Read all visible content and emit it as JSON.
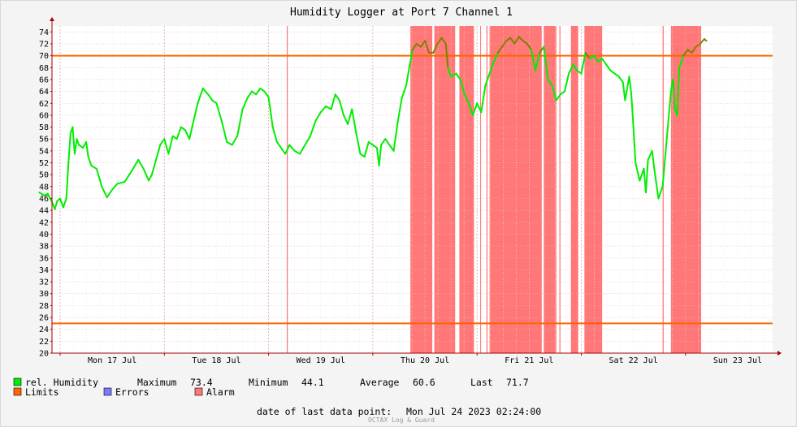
{
  "chart_data": {
    "type": "line",
    "title": "Humidity Logger at Port 7 Channel 1",
    "y_axis": {
      "range": [
        20,
        75
      ],
      "ticks": [
        20,
        22,
        24,
        26,
        28,
        30,
        32,
        34,
        36,
        38,
        40,
        42,
        44,
        46,
        48,
        50,
        52,
        54,
        56,
        58,
        60,
        62,
        64,
        66,
        68,
        70,
        72,
        74
      ]
    },
    "x_axis": {
      "range_days": "Mon Jul 17 2023 00:00 to Mon Jul 24 2023 02:24",
      "tick_labels": [
        "Mon 17 Jul",
        "Tue 18 Jul",
        "Wed 19 Jul",
        "Thu 20 Jul",
        "Fri 21 Jul",
        "Sat 22 Jul",
        "Sun 23 Jul"
      ]
    },
    "grid": true,
    "series": [
      {
        "name": "rel. Humidity",
        "color": "#00ee00",
        "color_above_limit": "#808000",
        "points_day_value": [
          [
            -0.2,
            47.0
          ],
          [
            -0.15,
            46.5
          ],
          [
            -0.12,
            46.8
          ],
          [
            -0.08,
            45.5
          ],
          [
            -0.05,
            44.2
          ],
          [
            -0.03,
            45.5
          ],
          [
            0.0,
            46.0
          ],
          [
            0.03,
            44.5
          ],
          [
            0.06,
            46.0
          ],
          [
            0.08,
            52.0
          ],
          [
            0.1,
            57.0
          ],
          [
            0.12,
            58.0
          ],
          [
            0.14,
            53.5
          ],
          [
            0.16,
            56.0
          ],
          [
            0.18,
            55.0
          ],
          [
            0.22,
            54.5
          ],
          [
            0.25,
            55.5
          ],
          [
            0.27,
            53.0
          ],
          [
            0.3,
            51.5
          ],
          [
            0.35,
            51.0
          ],
          [
            0.4,
            48.0
          ],
          [
            0.45,
            46.2
          ],
          [
            0.5,
            47.5
          ],
          [
            0.55,
            48.5
          ],
          [
            0.62,
            48.8
          ],
          [
            0.7,
            51.0
          ],
          [
            0.75,
            52.5
          ],
          [
            0.8,
            51.0
          ],
          [
            0.85,
            49.0
          ],
          [
            0.88,
            50.0
          ],
          [
            0.92,
            52.5
          ],
          [
            0.96,
            55.0
          ],
          [
            1.0,
            56.0
          ],
          [
            1.04,
            53.5
          ],
          [
            1.08,
            56.5
          ],
          [
            1.12,
            56.0
          ],
          [
            1.16,
            58.0
          ],
          [
            1.2,
            57.5
          ],
          [
            1.24,
            56.0
          ],
          [
            1.28,
            59.0
          ],
          [
            1.32,
            62.0
          ],
          [
            1.37,
            64.5
          ],
          [
            1.42,
            63.5
          ],
          [
            1.46,
            62.5
          ],
          [
            1.5,
            62.0
          ],
          [
            1.55,
            59.0
          ],
          [
            1.6,
            55.5
          ],
          [
            1.65,
            55.0
          ],
          [
            1.7,
            56.5
          ],
          [
            1.75,
            61.0
          ],
          [
            1.8,
            63.0
          ],
          [
            1.84,
            64.0
          ],
          [
            1.88,
            63.5
          ],
          [
            1.92,
            64.5
          ],
          [
            1.96,
            64.0
          ],
          [
            2.0,
            63.0
          ],
          [
            2.04,
            58.0
          ],
          [
            2.08,
            55.5
          ],
          [
            2.12,
            54.5
          ],
          [
            2.16,
            53.5
          ],
          [
            2.2,
            55.0
          ],
          [
            2.25,
            54.0
          ],
          [
            2.3,
            53.5
          ],
          [
            2.35,
            55.0
          ],
          [
            2.4,
            56.5
          ],
          [
            2.45,
            59.0
          ],
          [
            2.5,
            60.5
          ],
          [
            2.55,
            61.5
          ],
          [
            2.6,
            61.0
          ],
          [
            2.64,
            63.5
          ],
          [
            2.68,
            62.5
          ],
          [
            2.72,
            60.0
          ],
          [
            2.76,
            58.5
          ],
          [
            2.8,
            61.0
          ],
          [
            2.84,
            57.0
          ],
          [
            2.88,
            53.5
          ],
          [
            2.92,
            53.0
          ],
          [
            2.96,
            55.5
          ],
          [
            3.0,
            55.0
          ],
          [
            3.04,
            54.5
          ],
          [
            3.06,
            51.5
          ],
          [
            3.08,
            55.0
          ],
          [
            3.12,
            56.0
          ],
          [
            3.16,
            55.0
          ],
          [
            3.2,
            54.0
          ],
          [
            3.24,
            59.0
          ],
          [
            3.28,
            63.0
          ],
          [
            3.32,
            65.0
          ],
          [
            3.35,
            68.0
          ],
          [
            3.38,
            71.0
          ],
          [
            3.42,
            72.0
          ],
          [
            3.46,
            71.5
          ],
          [
            3.5,
            72.5
          ],
          [
            3.54,
            70.5
          ],
          [
            3.58,
            70.5
          ],
          [
            3.62,
            72.0
          ],
          [
            3.66,
            73.0
          ],
          [
            3.7,
            72.0
          ],
          [
            3.72,
            68.0
          ],
          [
            3.75,
            66.5
          ],
          [
            3.8,
            67.0
          ],
          [
            3.84,
            66.0
          ],
          [
            3.88,
            63.5
          ],
          [
            3.92,
            62.0
          ],
          [
            3.96,
            60.0
          ],
          [
            4.0,
            62.0
          ],
          [
            4.04,
            60.5
          ],
          [
            4.08,
            65.0
          ],
          [
            4.12,
            67.0
          ],
          [
            4.16,
            69.0
          ],
          [
            4.2,
            70.5
          ],
          [
            4.24,
            71.5
          ],
          [
            4.28,
            72.5
          ],
          [
            4.32,
            73.0
          ],
          [
            4.36,
            72.0
          ],
          [
            4.4,
            73.2
          ],
          [
            4.44,
            72.5
          ],
          [
            4.48,
            72.0
          ],
          [
            4.52,
            71.0
          ],
          [
            4.56,
            67.5
          ],
          [
            4.6,
            70.5
          ],
          [
            4.64,
            71.5
          ],
          [
            4.68,
            66.0
          ],
          [
            4.72,
            65.0
          ],
          [
            4.76,
            62.5
          ],
          [
            4.8,
            63.5
          ],
          [
            4.84,
            64.0
          ],
          [
            4.88,
            67.0
          ],
          [
            4.92,
            68.5
          ],
          [
            4.96,
            67.5
          ],
          [
            5.0,
            67.0
          ],
          [
            5.04,
            70.5
          ],
          [
            5.08,
            69.5
          ],
          [
            5.12,
            70.0
          ],
          [
            5.16,
            69.0
          ],
          [
            5.2,
            69.5
          ],
          [
            5.24,
            68.5
          ],
          [
            5.28,
            67.5
          ],
          [
            5.32,
            67.0
          ],
          [
            5.36,
            66.5
          ],
          [
            5.4,
            65.5
          ],
          [
            5.42,
            62.5
          ],
          [
            5.46,
            66.5
          ],
          [
            5.48,
            63.5
          ],
          [
            5.5,
            58.0
          ],
          [
            5.52,
            52.0
          ],
          [
            5.56,
            49.0
          ],
          [
            5.6,
            51.0
          ],
          [
            5.62,
            47.0
          ],
          [
            5.64,
            52.5
          ],
          [
            5.68,
            54.0
          ],
          [
            5.7,
            51.0
          ],
          [
            5.74,
            46.0
          ],
          [
            5.78,
            48.0
          ],
          [
            5.82,
            56.0
          ],
          [
            5.86,
            64.0
          ],
          [
            5.88,
            66.0
          ],
          [
            5.9,
            61.0
          ],
          [
            5.92,
            60.0
          ],
          [
            5.94,
            68.0
          ],
          [
            5.98,
            70.0
          ],
          [
            6.02,
            71.0
          ],
          [
            6.06,
            70.5
          ],
          [
            6.1,
            71.5
          ],
          [
            6.14,
            72.0
          ],
          [
            6.18,
            72.8
          ],
          [
            6.2,
            72.5
          ]
        ]
      },
      {
        "name": "Limits",
        "color": "#ff6600",
        "values": [
          25,
          70
        ]
      },
      {
        "name": "Errors",
        "color": "#7b7bff",
        "values": []
      },
      {
        "name": "Alarm",
        "color": "#ff7777",
        "intervals_days": [
          [
            3.36,
            3.57
          ],
          [
            3.59,
            3.79
          ],
          [
            3.83,
            3.97
          ],
          [
            4.03,
            4.035
          ],
          [
            4.09,
            4.1
          ],
          [
            4.12,
            4.62
          ],
          [
            4.64,
            4.76
          ],
          [
            4.79,
            4.8
          ],
          [
            4.9,
            4.97
          ],
          [
            5.03,
            5.2
          ],
          [
            5.78,
            5.79
          ],
          [
            5.86,
            6.15
          ]
        ]
      }
    ]
  },
  "legend": {
    "items": [
      {
        "label": "rel. Humidity",
        "color": "#00ee00"
      },
      {
        "label": "Limits",
        "color": "#ff6600"
      },
      {
        "label": "Errors",
        "color": "#7b7bff"
      },
      {
        "label": "Alarm",
        "color": "#ff7777"
      }
    ],
    "stats": {
      "maximum_label": "Maximum",
      "maximum_value": "73.4",
      "minimum_label": "Minimum",
      "minimum_value": "44.1",
      "average_label": "Average",
      "average_value": "60.6",
      "last_label": "Last",
      "last_value": "71.7"
    }
  },
  "footer": {
    "date_label": "date of last data point:",
    "date_value": "Mon Jul 24 2023 02:24:00",
    "credit": "OCTAX Log & Guard"
  }
}
